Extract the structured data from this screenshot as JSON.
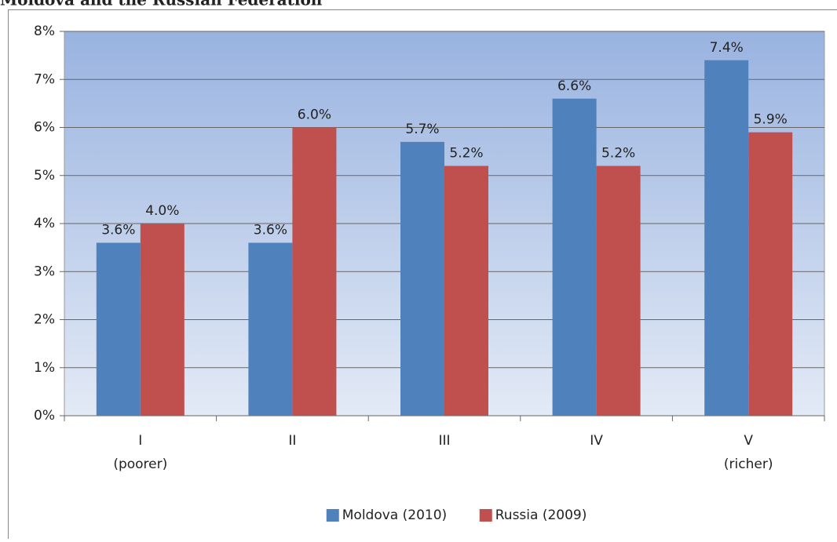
{
  "chart_data": {
    "type": "bar",
    "title": "Moldova and the Russian Federation",
    "categories": [
      "I\n(poorer)",
      "II",
      "III",
      "IV",
      "V\n(richer)"
    ],
    "series": [
      {
        "name": "Moldova (2010)",
        "color": "#4f81bd",
        "values": [
          3.6,
          3.6,
          5.7,
          6.6,
          7.4
        ],
        "value_labels": [
          "3.6%",
          "3.6%",
          "5.7%",
          "6.6%",
          "7.4%"
        ]
      },
      {
        "name": "Russia (2009)",
        "color": "#c0504d",
        "values": [
          4.0,
          6.0,
          5.2,
          5.2,
          5.9
        ],
        "value_labels": [
          "4.0%",
          "6.0%",
          "5.2%",
          "5.2%",
          "5.9%"
        ]
      }
    ],
    "ylim": [
      0,
      8
    ],
    "yticks": [
      {
        "value": 0,
        "label": "0%"
      },
      {
        "value": 1,
        "label": "1%"
      },
      {
        "value": 2,
        "label": "2%"
      },
      {
        "value": 3,
        "label": "3%"
      },
      {
        "value": 4,
        "label": "4%"
      },
      {
        "value": 5,
        "label": "5%"
      },
      {
        "value": 6,
        "label": "6%"
      },
      {
        "value": 7,
        "label": "7%"
      },
      {
        "value": 8,
        "label": "8%"
      }
    ],
    "grid": true,
    "legend": "bottom"
  }
}
